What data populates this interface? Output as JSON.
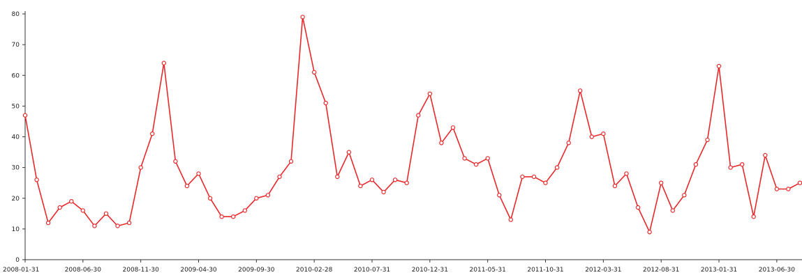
{
  "chart_data": {
    "type": "line",
    "title": "",
    "xlabel": "",
    "ylabel": "",
    "ylim": [
      0,
      80
    ],
    "yticks": [
      0,
      10,
      20,
      30,
      40,
      50,
      60,
      70,
      80
    ],
    "grid": false,
    "legend": "none",
    "line_color": "#e8292b",
    "x_tick_labels": [
      "2008-01-31",
      "2008-06-30",
      "2008-11-30",
      "2009-04-30",
      "2009-09-30",
      "2010-02-28",
      "2010-07-31",
      "2010-12-31",
      "2011-05-31",
      "2011-10-31",
      "2012-03-31",
      "2012-08-31",
      "2013-01-31",
      "2013-06-30"
    ],
    "x_tick_label_texts": [
      "2008-01-31",
      "2008-06-30",
      "2008-11-30",
      "2009-04-30",
      "2009-09-30",
      "2010-02-28",
      "2010-07-31",
      "2010-12-31",
      "2011-05-31",
      "2011-10-31",
      "2012-03-31",
      "2012-08-31",
      "2013-01-31",
      "2013-06-30"
    ],
    "x": [
      "2008-01-31",
      "2008-02-29",
      "2008-03-31",
      "2008-04-30",
      "2008-05-31",
      "2008-06-30",
      "2008-07-31",
      "2008-08-31",
      "2008-09-30",
      "2008-10-31",
      "2008-11-30",
      "2008-12-31",
      "2009-01-31",
      "2009-02-28",
      "2009-03-31",
      "2009-04-30",
      "2009-05-31",
      "2009-06-30",
      "2009-07-31",
      "2009-08-31",
      "2009-09-30",
      "2009-10-31",
      "2009-11-30",
      "2009-12-31",
      "2010-01-31",
      "2010-02-28",
      "2010-03-31",
      "2010-04-30",
      "2010-05-31",
      "2010-06-30",
      "2010-07-31",
      "2010-08-31",
      "2010-09-30",
      "2010-10-31",
      "2010-11-30",
      "2010-12-31",
      "2011-01-31",
      "2011-02-28",
      "2011-03-31",
      "2011-04-30",
      "2011-05-31",
      "2011-06-30",
      "2011-07-31",
      "2011-08-31",
      "2011-09-30",
      "2011-10-31",
      "2011-11-30",
      "2011-12-31",
      "2012-01-31",
      "2012-02-29",
      "2012-03-31",
      "2012-04-30",
      "2012-05-31",
      "2012-06-30",
      "2012-07-31",
      "2012-08-31",
      "2012-09-30",
      "2012-10-31",
      "2012-11-30",
      "2012-12-31",
      "2013-01-31",
      "2013-02-28",
      "2013-03-31",
      "2013-04-30",
      "2013-05-31",
      "2013-06-30",
      "2013-07-31",
      "2013-08-31"
    ],
    "series": [
      {
        "values": [
          47,
          26,
          12,
          17,
          19,
          16,
          11,
          15,
          11,
          12,
          30,
          41,
          64,
          32,
          24,
          28,
          20,
          14,
          14,
          16,
          20,
          21,
          27,
          32,
          79,
          61,
          51,
          27,
          35,
          24,
          26,
          22,
          26,
          25,
          47,
          54,
          38,
          43,
          33,
          31,
          33,
          21,
          13,
          27,
          27,
          25,
          30,
          38,
          55,
          40,
          41,
          24,
          28,
          17,
          9,
          25,
          16,
          21,
          31,
          39,
          63,
          30,
          31,
          14,
          34,
          23,
          23,
          25
        ]
      }
    ]
  }
}
